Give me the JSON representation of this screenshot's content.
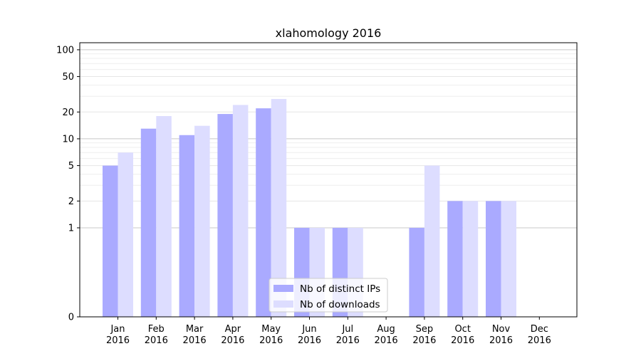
{
  "chart_data": {
    "type": "bar",
    "title": "xlahomology 2016",
    "xlabel": "",
    "ylabel": "",
    "yscale": "symlog",
    "ylim": [
      0,
      120
    ],
    "yticks": [
      0,
      1,
      2,
      5,
      10,
      20,
      50,
      100
    ],
    "categories": [
      [
        "Jan",
        "2016"
      ],
      [
        "Feb",
        "2016"
      ],
      [
        "Mar",
        "2016"
      ],
      [
        "Apr",
        "2016"
      ],
      [
        "May",
        "2016"
      ],
      [
        "Jun",
        "2016"
      ],
      [
        "Jul",
        "2016"
      ],
      [
        "Aug",
        "2016"
      ],
      [
        "Sep",
        "2016"
      ],
      [
        "Oct",
        "2016"
      ],
      [
        "Nov",
        "2016"
      ],
      [
        "Dec",
        "2016"
      ]
    ],
    "series": [
      {
        "name": "Nb of distinct IPs",
        "color": "#aaaaff",
        "values": [
          5,
          13,
          11,
          19,
          22,
          1,
          1,
          0,
          1,
          2,
          2,
          0
        ]
      },
      {
        "name": "Nb of downloads",
        "color": "#ddddff",
        "values": [
          7,
          18,
          14,
          24,
          28,
          1,
          1,
          0,
          5,
          2,
          2,
          0
        ]
      }
    ],
    "grid": true,
    "legend_position": "lower-center"
  }
}
